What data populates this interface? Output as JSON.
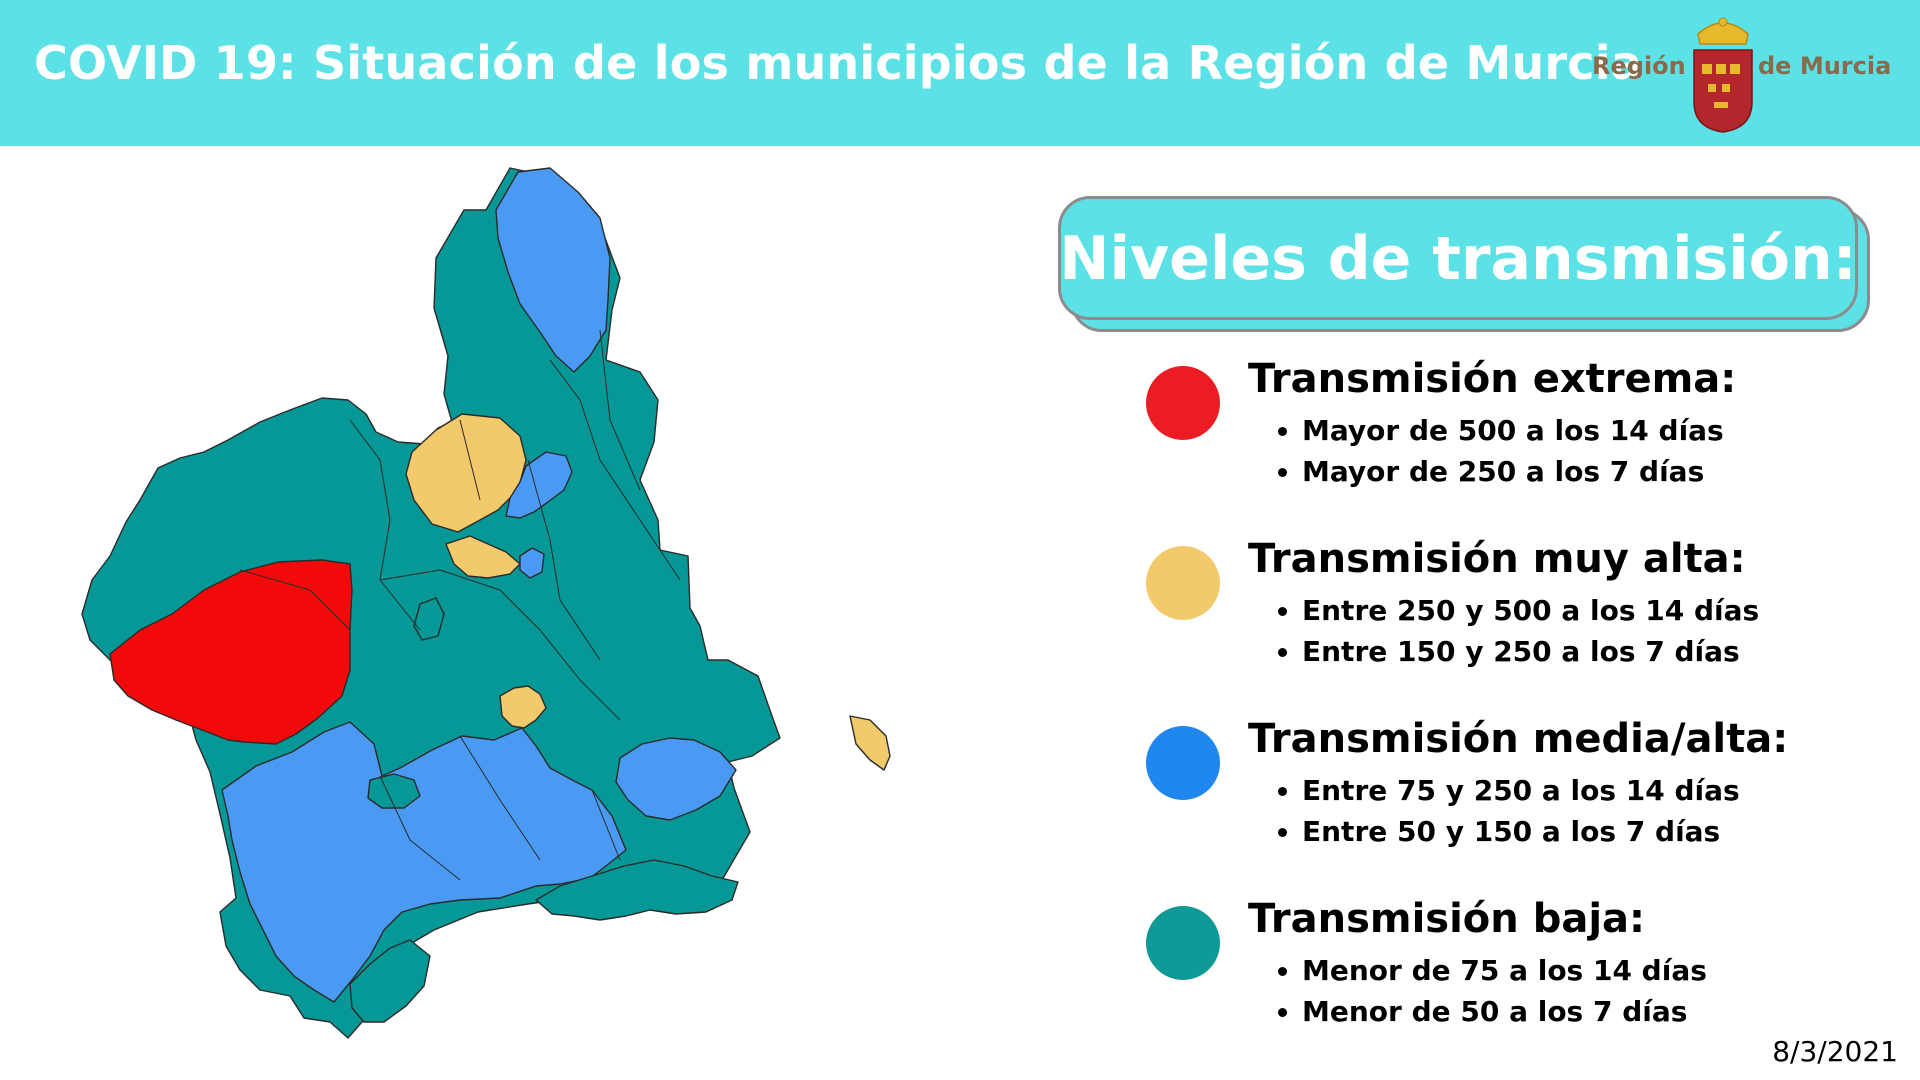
{
  "header": {
    "title": "COVID 19: Situación de los municipios de la Región de Murcia",
    "logo_left": "Región",
    "logo_right": "de Murcia"
  },
  "legend": {
    "title": "Niveles de transmisión:",
    "levels": [
      {
        "name": "Transmisión extrema:",
        "color": "#ed1c24",
        "items": [
          "Mayor de 500 a los 14 días",
          "Mayor de 250 a los 7 días"
        ]
      },
      {
        "name": "Transmisión muy alta:",
        "color": "#f2c96b",
        "items": [
          "Entre 250 y 500 a los 14 días",
          "Entre 150 y 250 a los 7 días"
        ]
      },
      {
        "name": "Transmisión media/alta:",
        "color": "#1f87ee",
        "items": [
          "Entre 75 y 250 a los 14 días",
          "Entre 50 y 150 a los 7 días"
        ]
      },
      {
        "name": "Transmisión baja:",
        "color": "#0f9a98",
        "items": [
          "Menor de 75 a los 14 días",
          "Menor de 50 a los 7 días"
        ]
      }
    ]
  },
  "map_colors": {
    "extreme": "#f20a0a",
    "very_high": "#f2c96b",
    "medium_high": "#4a9af3",
    "low": "#069896"
  },
  "date": "8/3/2021"
}
